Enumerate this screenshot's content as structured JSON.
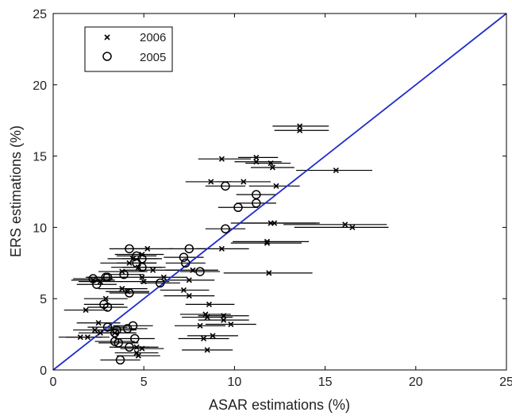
{
  "chart_data": {
    "type": "scatter",
    "xlabel": "ASAR estimations (%)",
    "ylabel": "ERS estimations (%)",
    "xlim": [
      0,
      25
    ],
    "ylim": [
      0,
      25
    ],
    "xticks": [
      "0",
      "5",
      "10",
      "15",
      "20",
      "25"
    ],
    "yticks": [
      "0",
      "5",
      "10",
      "15",
      "20",
      "25"
    ],
    "grid": false,
    "legend": {
      "placement": "top-left",
      "entries": [
        "2006",
        "2005"
      ]
    },
    "reference_line": {
      "from": [
        0,
        0
      ],
      "to": [
        25,
        25
      ],
      "color": "#1f2ccc"
    },
    "colors": {
      "points": "#000000",
      "errorbars": "#000000",
      "line": "#1f2ccc",
      "frame": "#000000"
    },
    "series": [
      {
        "name": "2006",
        "marker": "x",
        "points": [
          [
            13.6,
            17.1,
            12.1,
            15.2
          ],
          [
            13.6,
            16.8,
            12.2,
            15.2
          ],
          [
            9.3,
            14.8,
            8.0,
            10.9
          ],
          [
            11.2,
            14.9,
            10.2,
            12.4
          ],
          [
            11.2,
            14.6,
            10.0,
            12.6
          ],
          [
            12.0,
            14.5,
            10.6,
            13.1
          ],
          [
            12.1,
            14.2,
            10.9,
            13.3
          ],
          [
            15.6,
            14.0,
            13.4,
            17.6
          ],
          [
            8.7,
            13.2,
            7.3,
            9.9
          ],
          [
            10.5,
            13.2,
            9.0,
            12.0
          ],
          [
            12.3,
            12.9,
            10.8,
            13.6
          ],
          [
            12.0,
            10.3,
            9.8,
            14.5
          ],
          [
            12.2,
            10.3,
            10.2,
            14.7
          ],
          [
            16.1,
            10.2,
            12.7,
            18.4
          ],
          [
            16.5,
            10.0,
            13.3,
            18.5
          ],
          [
            11.8,
            9.0,
            9.9,
            14.1
          ],
          [
            11.8,
            8.9,
            9.8,
            13.7
          ],
          [
            9.3,
            8.5,
            7.9,
            10.8
          ],
          [
            11.9,
            6.8,
            9.4,
            14.3
          ],
          [
            5.2,
            8.5,
            3.9,
            6.6
          ],
          [
            4.9,
            8.1,
            3.4,
            6.1
          ],
          [
            4.4,
            7.8,
            3.0,
            5.8
          ],
          [
            4.2,
            7.5,
            2.6,
            5.7
          ],
          [
            4.7,
            7.2,
            3.2,
            6.2
          ],
          [
            5.5,
            7.0,
            3.9,
            7.1
          ],
          [
            3.8,
            6.9,
            2.5,
            5.2
          ],
          [
            4.9,
            6.5,
            3.4,
            6.3
          ],
          [
            6.1,
            6.5,
            4.8,
            7.4
          ],
          [
            5.0,
            6.2,
            3.7,
            6.4
          ],
          [
            3.8,
            5.7,
            2.5,
            5.2
          ],
          [
            4.1,
            5.5,
            2.9,
            5.3
          ],
          [
            7.7,
            7.0,
            6.2,
            9.1
          ],
          [
            7.5,
            6.3,
            6.1,
            8.9
          ],
          [
            7.2,
            5.6,
            5.9,
            8.6
          ],
          [
            7.5,
            5.2,
            6.1,
            8.9
          ],
          [
            2.2,
            6.3,
            1.0,
            3.4
          ],
          [
            2.6,
            6.2,
            1.4,
            3.8
          ],
          [
            2.9,
            5.0,
            1.7,
            4.1
          ],
          [
            1.8,
            4.2,
            0.6,
            3.0
          ],
          [
            2.5,
            3.3,
            1.3,
            3.7
          ],
          [
            2.3,
            2.8,
            1.1,
            3.5
          ],
          [
            2.6,
            2.6,
            1.4,
            3.8
          ],
          [
            1.5,
            2.3,
            0.3,
            2.7
          ],
          [
            1.9,
            2.3,
            0.7,
            3.1
          ],
          [
            3.4,
            2.6,
            2.2,
            4.6
          ],
          [
            4.6,
            1.6,
            3.4,
            5.8
          ],
          [
            4.9,
            1.5,
            3.7,
            6.1
          ],
          [
            4.6,
            1.2,
            3.4,
            5.8
          ],
          [
            4.7,
            1.0,
            3.5,
            5.9
          ],
          [
            8.6,
            4.6,
            7.3,
            10.0
          ],
          [
            8.4,
            3.9,
            7.0,
            9.8
          ],
          [
            9.4,
            3.8,
            8.0,
            10.8
          ],
          [
            8.5,
            3.7,
            7.1,
            9.9
          ],
          [
            9.4,
            3.5,
            8.0,
            10.8
          ],
          [
            9.8,
            3.2,
            8.4,
            11.2
          ],
          [
            8.1,
            3.1,
            6.7,
            9.5
          ],
          [
            8.8,
            2.4,
            7.4,
            10.2
          ],
          [
            8.3,
            2.2,
            6.9,
            9.7
          ],
          [
            8.5,
            1.4,
            7.1,
            9.9
          ]
        ]
      },
      {
        "name": "2005",
        "marker": "o",
        "points": [
          [
            9.5,
            12.9,
            8.4,
            10.6
          ],
          [
            11.2,
            12.3,
            10.1,
            12.3
          ],
          [
            11.2,
            11.7,
            10.1,
            12.3
          ],
          [
            10.2,
            11.4,
            9.1,
            11.3
          ],
          [
            9.5,
            9.9,
            8.4,
            10.6
          ],
          [
            4.2,
            8.5,
            3.1,
            5.3
          ],
          [
            7.5,
            8.5,
            6.4,
            8.6
          ],
          [
            4.6,
            8.0,
            3.5,
            5.7
          ],
          [
            4.9,
            7.8,
            3.8,
            6.0
          ],
          [
            7.2,
            7.9,
            6.1,
            8.3
          ],
          [
            4.6,
            7.5,
            3.5,
            5.7
          ],
          [
            4.9,
            7.2,
            3.8,
            6.0
          ],
          [
            7.3,
            7.5,
            6.2,
            8.4
          ],
          [
            3.9,
            6.7,
            2.8,
            5.0
          ],
          [
            8.1,
            6.9,
            7.0,
            9.2
          ],
          [
            2.2,
            6.4,
            1.1,
            3.3
          ],
          [
            2.9,
            6.5,
            1.8,
            4.0
          ],
          [
            3.0,
            6.5,
            1.9,
            4.1
          ],
          [
            5.9,
            6.1,
            4.8,
            7.0
          ],
          [
            2.4,
            6.0,
            1.3,
            3.5
          ],
          [
            4.2,
            5.4,
            3.1,
            5.3
          ],
          [
            2.8,
            4.6,
            1.7,
            3.9
          ],
          [
            3.0,
            4.4,
            1.9,
            4.1
          ],
          [
            4.4,
            3.1,
            3.3,
            5.5
          ],
          [
            3.0,
            3.0,
            1.9,
            4.1
          ],
          [
            3.5,
            2.8,
            2.4,
            4.6
          ],
          [
            4.1,
            2.9,
            3.0,
            5.2
          ],
          [
            3.4,
            2.6,
            2.3,
            4.5
          ],
          [
            3.4,
            2.0,
            2.3,
            4.5
          ],
          [
            4.5,
            2.2,
            3.4,
            5.6
          ],
          [
            3.6,
            1.9,
            2.5,
            4.7
          ],
          [
            4.2,
            1.6,
            3.1,
            5.3
          ],
          [
            3.7,
            0.7,
            2.6,
            4.8
          ]
        ]
      }
    ]
  }
}
